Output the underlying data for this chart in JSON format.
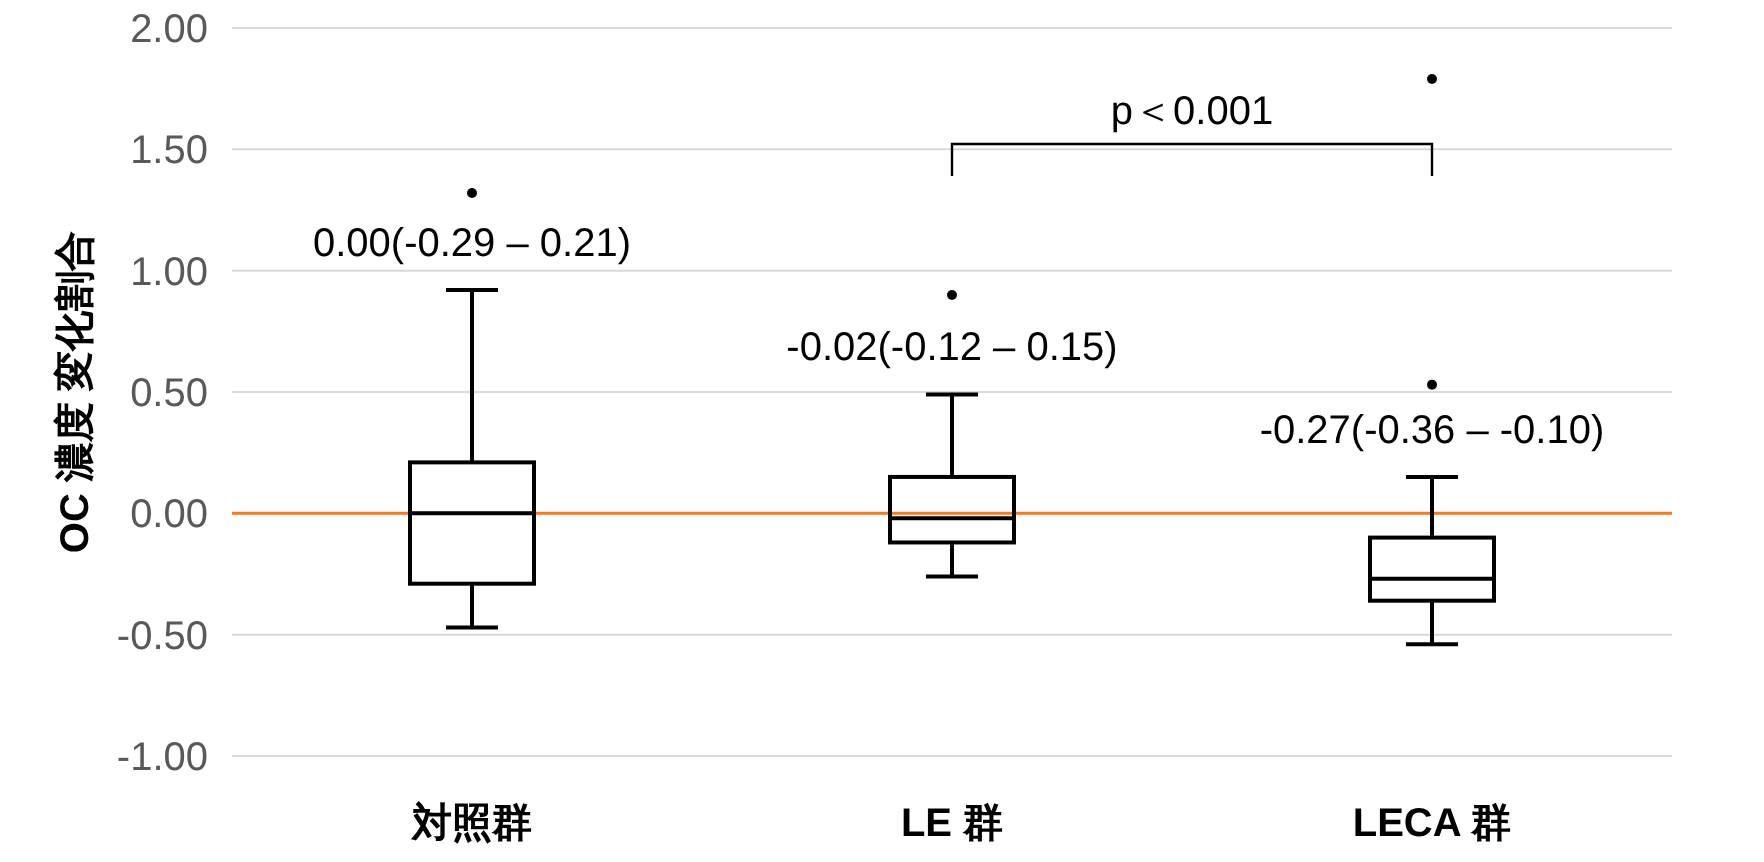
{
  "chart_data": {
    "type": "box",
    "ylabel": "OC 濃度 変化割合",
    "categories": [
      "対照群",
      "LE 群",
      "LECA 群"
    ],
    "boxes": [
      {
        "low": -0.47,
        "q1": -0.29,
        "median": 0.0,
        "q3": 0.21,
        "high": 0.92,
        "outliers": [
          1.32
        ]
      },
      {
        "low": -0.26,
        "q1": -0.12,
        "median": -0.02,
        "q3": 0.15,
        "high": 0.49,
        "outliers": [
          0.9
        ]
      },
      {
        "low": -0.54,
        "q1": -0.36,
        "median": -0.27,
        "q3": -0.1,
        "high": 0.15,
        "outliers": [
          0.53,
          1.79
        ]
      }
    ],
    "color": "#000000",
    "ylim": [
      -1.0,
      2.0
    ],
    "yticks": [
      {
        "value": -1.0,
        "label": "-1.00"
      },
      {
        "value": -0.5,
        "label": "-0.50"
      },
      {
        "value": 0,
        "label": "0.00"
      },
      {
        "value": 0.5,
        "label": "0.50"
      },
      {
        "value": 1.0,
        "label": "1.00"
      },
      {
        "value": 1.5,
        "label": "1.50"
      },
      {
        "value": 2.0,
        "label": "2.00"
      }
    ],
    "grid": "y",
    "ref_lines": [
      {
        "axis": "y",
        "value": 0,
        "color": "#ed7d31"
      }
    ],
    "annotations": [
      {
        "text": "0.00(-0.29 – 0.21)",
        "x": "対照群",
        "y": 0.92
      },
      {
        "text": "-0.02(-0.12 – 0.15)",
        "x": "LE 群",
        "y": 0.49
      },
      {
        "text": "-0.27(-0.36 – -0.10)",
        "x": "LECA 群",
        "y": 0.15
      },
      "p＜0.001"
    ]
  }
}
